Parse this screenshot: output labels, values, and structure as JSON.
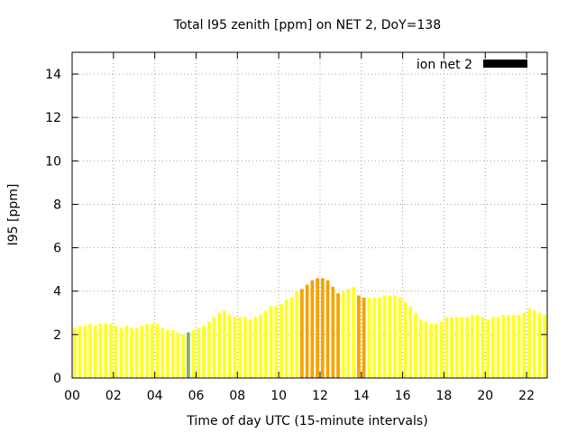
{
  "chart_data": {
    "type": "bar",
    "title": "Total I95 zenith [ppm] on NET 2, DoY=138",
    "xlabel": "Time of day UTC (15-minute intervals)",
    "ylabel": "I95 [ppm]",
    "xlim": [
      0,
      23
    ],
    "ylim": [
      0,
      15
    ],
    "xticks": [
      0,
      2,
      4,
      6,
      8,
      10,
      12,
      14,
      16,
      18,
      20,
      22
    ],
    "xtick_labels": [
      "00",
      "02",
      "04",
      "06",
      "08",
      "10",
      "12",
      "14",
      "16",
      "18",
      "20",
      "22"
    ],
    "yticks": [
      0,
      2,
      4,
      6,
      8,
      10,
      12,
      14
    ],
    "ytick_labels": [
      "0",
      "2",
      "4",
      "6",
      "8",
      "10",
      "12",
      "14"
    ],
    "grid": true,
    "legend": {
      "label": "ion net 2",
      "placement": "top-right",
      "color": "#000000"
    },
    "bar_width_hours": 0.25,
    "colors": {
      "normal": "#ffff22",
      "elevated": "#f5a300",
      "low": "#7fb060"
    },
    "x": [
      0.125,
      0.375,
      0.625,
      0.875,
      1.125,
      1.375,
      1.625,
      1.875,
      2.125,
      2.375,
      2.625,
      2.875,
      3.125,
      3.375,
      3.625,
      3.875,
      4.125,
      4.375,
      4.625,
      4.875,
      5.125,
      5.375,
      5.625,
      5.875,
      6.125,
      6.375,
      6.625,
      6.875,
      7.125,
      7.375,
      7.625,
      7.875,
      8.125,
      8.375,
      8.625,
      8.875,
      9.125,
      9.375,
      9.625,
      9.875,
      10.125,
      10.375,
      10.625,
      10.875,
      11.125,
      11.375,
      11.625,
      11.875,
      12.125,
      12.375,
      12.625,
      12.875,
      13.125,
      13.375,
      13.625,
      13.875,
      14.125,
      14.375,
      14.625,
      14.875,
      15.125,
      15.375,
      15.625,
      15.875,
      16.125,
      16.375,
      16.625,
      16.875,
      17.125,
      17.375,
      17.625,
      17.875,
      18.125,
      18.375,
      18.625,
      18.875,
      19.125,
      19.375,
      19.625,
      19.875,
      20.125,
      20.375,
      20.625,
      20.875,
      21.125,
      21.375,
      21.625,
      21.875,
      22.125,
      22.375,
      22.625,
      22.875
    ],
    "values": [
      2.3,
      2.4,
      2.4,
      2.5,
      2.4,
      2.5,
      2.5,
      2.5,
      2.4,
      2.3,
      2.4,
      2.3,
      2.3,
      2.4,
      2.5,
      2.5,
      2.5,
      2.3,
      2.2,
      2.2,
      2.1,
      2.0,
      2.1,
      2.2,
      2.3,
      2.4,
      2.6,
      2.8,
      3.0,
      3.1,
      2.9,
      2.8,
      2.8,
      2.8,
      2.7,
      2.8,
      2.9,
      3.1,
      3.3,
      3.3,
      3.4,
      3.6,
      3.7,
      4.0,
      4.1,
      4.3,
      4.5,
      4.6,
      4.6,
      4.5,
      4.2,
      3.9,
      4.0,
      4.1,
      4.2,
      3.8,
      3.7,
      3.7,
      3.7,
      3.7,
      3.8,
      3.8,
      3.8,
      3.7,
      3.5,
      3.3,
      3.0,
      2.7,
      2.6,
      2.5,
      2.5,
      2.6,
      2.8,
      2.8,
      2.8,
      2.8,
      2.8,
      2.9,
      2.9,
      2.8,
      2.7,
      2.8,
      2.8,
      2.9,
      2.9,
      2.9,
      2.9,
      3.0,
      3.2,
      3.1,
      3.0,
      2.9
    ],
    "levels": [
      "n",
      "n",
      "n",
      "n",
      "n",
      "n",
      "n",
      "n",
      "n",
      "n",
      "n",
      "n",
      "n",
      "n",
      "n",
      "n",
      "n",
      "n",
      "n",
      "n",
      "n",
      "n",
      "l",
      "n",
      "n",
      "n",
      "n",
      "n",
      "n",
      "n",
      "n",
      "n",
      "n",
      "n",
      "n",
      "n",
      "n",
      "n",
      "n",
      "n",
      "n",
      "n",
      "n",
      "n",
      "e",
      "e",
      "e",
      "e",
      "e",
      "e",
      "e",
      "e",
      "n",
      "n",
      "n",
      "e",
      "e",
      "n",
      "n",
      "n",
      "n",
      "n",
      "n",
      "n",
      "n",
      "n",
      "n",
      "n",
      "n",
      "n",
      "n",
      "n",
      "n",
      "n",
      "n",
      "n",
      "n",
      "n",
      "n",
      "n",
      "n",
      "n",
      "n",
      "n",
      "n",
      "n",
      "n",
      "n",
      "n",
      "n",
      "n",
      "n"
    ]
  }
}
